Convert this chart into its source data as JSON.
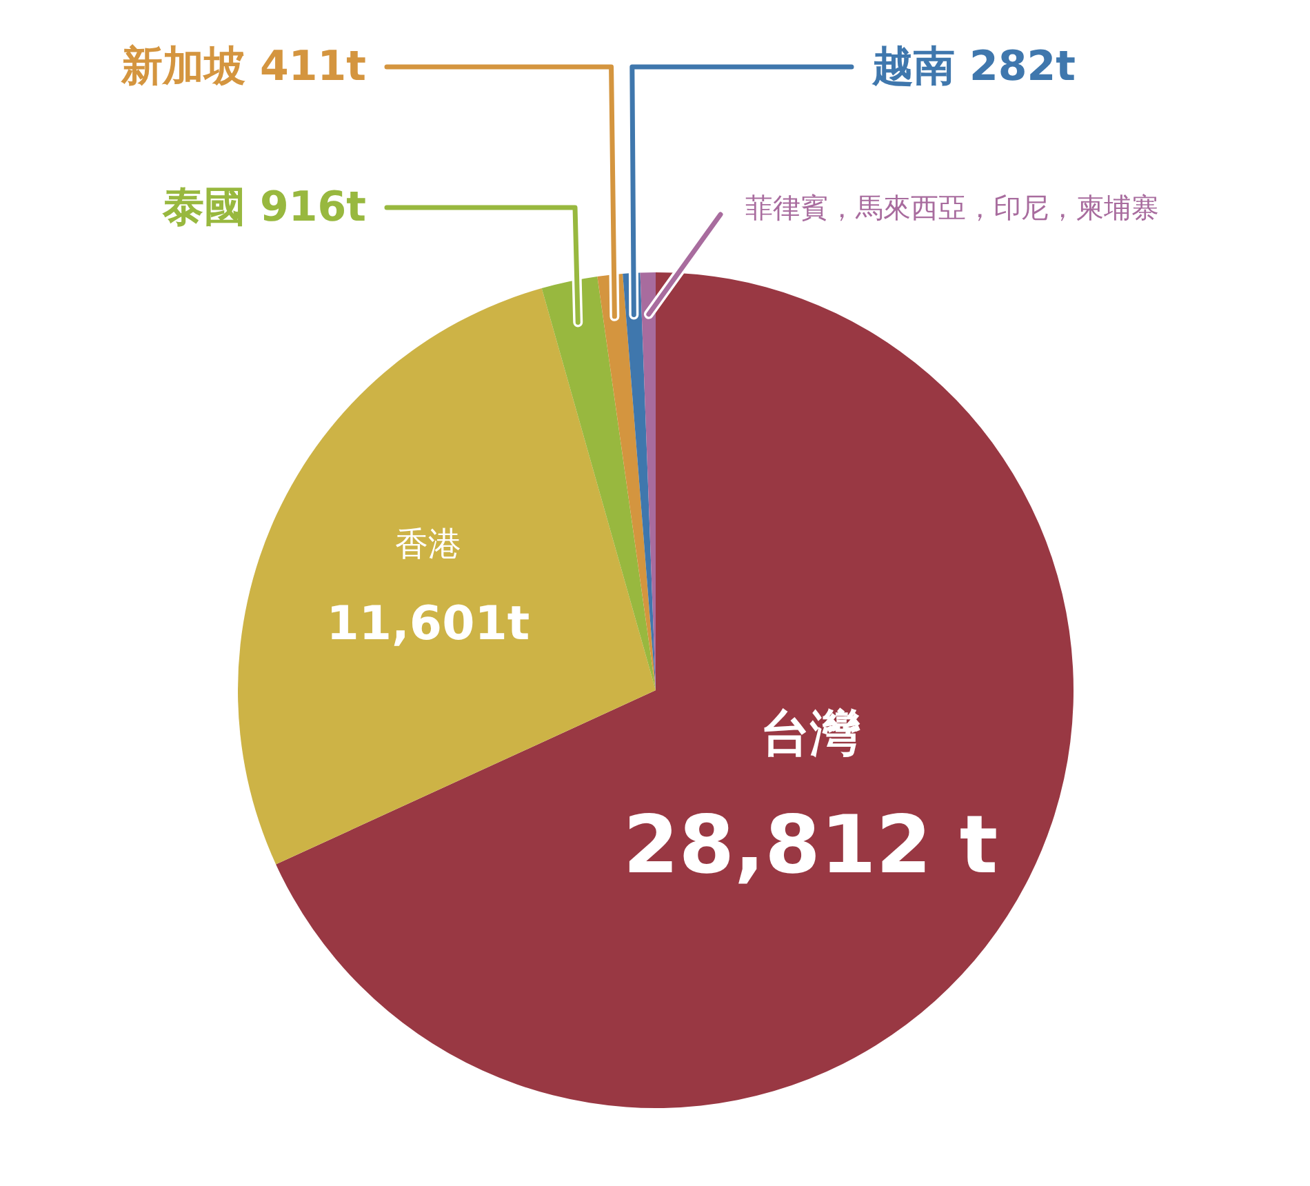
{
  "chart_data": {
    "type": "pie",
    "categories": [
      "台灣",
      "香港",
      "泰國",
      "新加坡",
      "越南",
      "菲律賓，馬來西亞，印尼，柬埔寨"
    ],
    "values": [
      28812,
      11601,
      916,
      411,
      282,
      250
    ],
    "colors": [
      "#993843",
      "#cdb346",
      "#98b83f",
      "#d4953f",
      "#3f77ad",
      "#a86c9e"
    ],
    "value_labels": [
      "28,812 t",
      "11,601t",
      "916t",
      "411t",
      "282t",
      null
    ]
  }
}
